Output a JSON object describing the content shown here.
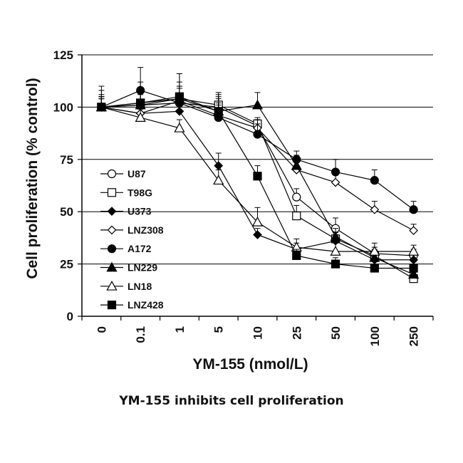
{
  "caption": "YM-155 inhibits cell proliferation",
  "chart_data": {
    "type": "line",
    "title": "",
    "xlabel": "YM-155 (nmol/L)",
    "ylabel": "Cell proliferation (% control)",
    "categories": [
      "0",
      "0.1",
      "1",
      "5",
      "10",
      "25",
      "50",
      "100",
      "250"
    ],
    "ylim": [
      0,
      125
    ],
    "yticks": [
      0,
      25,
      50,
      75,
      100,
      125
    ],
    "grid": "horizontal",
    "legend_position": "left",
    "series": [
      {
        "name": "U87",
        "marker": "circle-open",
        "values": [
          100,
          101,
          102,
          100,
          91,
          57,
          42,
          30,
          29
        ],
        "err": [
          5,
          6,
          8,
          6,
          3,
          4,
          5,
          3,
          3
        ]
      },
      {
        "name": "T98G",
        "marker": "square-open",
        "values": [
          100,
          102,
          104,
          101,
          92,
          48,
          37,
          29,
          18
        ],
        "err": [
          6,
          5,
          8,
          6,
          3,
          5,
          3,
          3,
          3
        ]
      },
      {
        "name": "U373",
        "marker": "diamond-filled",
        "values": [
          100,
          97,
          98,
          72,
          39,
          32,
          36,
          27,
          27
        ],
        "err": [
          4,
          4,
          5,
          6,
          3,
          3,
          3,
          3,
          3
        ]
      },
      {
        "name": "LNZ308",
        "marker": "diamond-open",
        "values": [
          100,
          97,
          103,
          96,
          90,
          70,
          64,
          51,
          41
        ],
        "err": [
          5,
          5,
          6,
          5,
          4,
          5,
          4,
          4,
          3
        ]
      },
      {
        "name": "A172",
        "marker": "circle-filled",
        "values": [
          100,
          108,
          102,
          95,
          87,
          75,
          69,
          65,
          51
        ],
        "err": [
          10,
          11,
          14,
          10,
          5,
          4,
          6,
          5,
          4
        ]
      },
      {
        "name": "LN229",
        "marker": "triangle-filled",
        "values": [
          100,
          101,
          104,
          98,
          101,
          72,
          38,
          28,
          20
        ],
        "err": [
          5,
          5,
          6,
          4,
          6,
          5,
          4,
          3,
          3
        ]
      },
      {
        "name": "LN18",
        "marker": "triangle-open",
        "values": [
          100,
          95,
          90,
          65,
          45,
          33,
          31,
          31,
          31
        ],
        "err": [
          4,
          4,
          4,
          5,
          7,
          4,
          4,
          4,
          3
        ]
      },
      {
        "name": "LNZ428",
        "marker": "square-filled",
        "values": [
          100,
          102,
          105,
          98,
          67,
          29,
          25,
          23,
          23
        ],
        "err": [
          8,
          10,
          11,
          6,
          5,
          3,
          3,
          3,
          3
        ]
      }
    ]
  }
}
